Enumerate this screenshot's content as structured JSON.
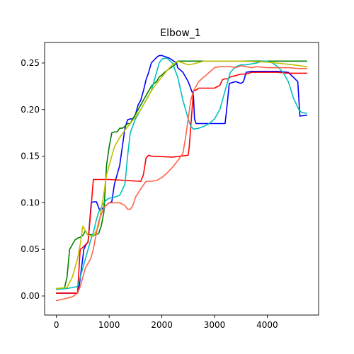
{
  "chart_data": {
    "type": "line",
    "title": "Elbow_1",
    "xlabel": "",
    "ylabel": "",
    "xlim": [
      -225,
      4975
    ],
    "ylim": [
      -0.0205,
      0.272
    ],
    "x_ticks": [
      0,
      1000,
      2000,
      3000,
      4000
    ],
    "x_tick_labels": [
      "0",
      "1000",
      "2000",
      "3000",
      "4000"
    ],
    "y_ticks": [
      0.0,
      0.05,
      0.1,
      0.15,
      0.2,
      0.25
    ],
    "y_tick_labels": [
      "0.00",
      "0.05",
      "0.10",
      "0.15",
      "0.20",
      "0.25"
    ],
    "grid": false,
    "legend": "none",
    "series": [
      {
        "color": "#0000ff",
        "x": [
          0,
          150,
          300,
          400,
          430,
          520,
          560,
          600,
          660,
          700,
          760,
          820,
          900,
          1000,
          1050,
          1100,
          1150,
          1200,
          1250,
          1300,
          1350,
          1400,
          1450,
          1500,
          1550,
          1600,
          1650,
          1700,
          1750,
          1800,
          1850,
          1900,
          1950,
          2000,
          2050,
          2100,
          2150,
          2200,
          2280,
          2300,
          2400,
          2500,
          2600,
          2620,
          2650,
          3000,
          3200,
          3230,
          3280,
          3400,
          3500,
          3550,
          3600,
          3700,
          4000,
          4200,
          4400,
          4580,
          4620,
          4750
        ],
        "y": [
          0.003,
          0.003,
          0.003,
          0.003,
          0.01,
          0.05,
          0.055,
          0.058,
          0.1,
          0.101,
          0.101,
          0.092,
          0.095,
          0.1,
          0.101,
          0.12,
          0.13,
          0.14,
          0.16,
          0.18,
          0.189,
          0.19,
          0.19,
          0.195,
          0.205,
          0.21,
          0.22,
          0.232,
          0.24,
          0.25,
          0.253,
          0.256,
          0.258,
          0.258,
          0.257,
          0.256,
          0.255,
          0.253,
          0.25,
          0.245,
          0.24,
          0.23,
          0.215,
          0.19,
          0.185,
          0.185,
          0.185,
          0.2,
          0.228,
          0.23,
          0.228,
          0.23,
          0.24,
          0.241,
          0.241,
          0.241,
          0.24,
          0.23,
          0.193,
          0.194
        ]
      },
      {
        "color": "#008000",
        "x": [
          0,
          150,
          200,
          250,
          300,
          350,
          400,
          450,
          500,
          550,
          600,
          650,
          700,
          750,
          800,
          850,
          900,
          950,
          1000,
          1050,
          1100,
          1150,
          1200,
          1250,
          1300,
          1350,
          1400,
          1450,
          1500,
          1550,
          1600,
          1650,
          1700,
          1750,
          1800,
          1850,
          1900,
          1950,
          2000,
          2050,
          2100,
          2150,
          2200,
          2250,
          2300,
          2500,
          3000,
          3500,
          4000,
          4500,
          4750
        ],
        "y": [
          0.008,
          0.008,
          0.02,
          0.05,
          0.055,
          0.06,
          0.062,
          0.063,
          0.065,
          0.07,
          0.065,
          0.066,
          0.065,
          0.066,
          0.067,
          0.075,
          0.09,
          0.14,
          0.16,
          0.175,
          0.176,
          0.176,
          0.18,
          0.18,
          0.182,
          0.185,
          0.185,
          0.19,
          0.195,
          0.2,
          0.205,
          0.21,
          0.215,
          0.22,
          0.225,
          0.228,
          0.23,
          0.235,
          0.237,
          0.24,
          0.242,
          0.244,
          0.246,
          0.248,
          0.252,
          0.252,
          0.252,
          0.252,
          0.252,
          0.252,
          0.252
        ]
      },
      {
        "color": "#ff0000",
        "x": [
          0,
          200,
          400,
          450,
          500,
          550,
          600,
          650,
          700,
          1000,
          1300,
          1600,
          1650,
          1700,
          1750,
          1800,
          2200,
          2500,
          2520,
          2560,
          2600,
          2650,
          2700,
          2800,
          3000,
          3100,
          3150,
          3200,
          3250,
          3300,
          3500,
          3600,
          3700,
          4000,
          4200,
          4400,
          4750
        ],
        "y": [
          0.003,
          0.003,
          0.003,
          0.05,
          0.052,
          0.055,
          0.058,
          0.09,
          0.125,
          0.125,
          0.124,
          0.123,
          0.13,
          0.148,
          0.151,
          0.15,
          0.149,
          0.151,
          0.16,
          0.19,
          0.22,
          0.221,
          0.223,
          0.223,
          0.223,
          0.226,
          0.232,
          0.233,
          0.233,
          0.235,
          0.238,
          0.238,
          0.24,
          0.24,
          0.24,
          0.239,
          0.239
        ]
      },
      {
        "color": "#00bfbf",
        "x": [
          0,
          200,
          400,
          500,
          550,
          600,
          650,
          700,
          750,
          800,
          850,
          900,
          950,
          1000,
          1100,
          1200,
          1300,
          1350,
          1400,
          1500,
          1600,
          1700,
          1800,
          1850,
          1900,
          1950,
          2000,
          2050,
          2100,
          2200,
          2300,
          2400,
          2500,
          2550,
          2600,
          2700,
          2800,
          2900,
          3000,
          3050,
          3100,
          3200,
          3300,
          3400,
          3500,
          3600,
          3700,
          3800,
          3900,
          4000,
          4100,
          4200,
          4300,
          4400,
          4500,
          4600,
          4650,
          4750
        ],
        "y": [
          0.007,
          0.008,
          0.01,
          0.03,
          0.04,
          0.05,
          0.06,
          0.068,
          0.08,
          0.09,
          0.095,
          0.1,
          0.103,
          0.105,
          0.106,
          0.108,
          0.12,
          0.15,
          0.175,
          0.19,
          0.2,
          0.21,
          0.22,
          0.23,
          0.24,
          0.25,
          0.254,
          0.255,
          0.255,
          0.25,
          0.235,
          0.21,
          0.19,
          0.182,
          0.179,
          0.18,
          0.182,
          0.185,
          0.19,
          0.195,
          0.2,
          0.22,
          0.24,
          0.246,
          0.248,
          0.248,
          0.249,
          0.25,
          0.252,
          0.252,
          0.25,
          0.246,
          0.24,
          0.23,
          0.212,
          0.2,
          0.197,
          0.196
        ]
      },
      {
        "color": "#bfbf00",
        "x": [
          0,
          200,
          300,
          400,
          450,
          500,
          550,
          600,
          700,
          800,
          900,
          950,
          1000,
          1050,
          1100,
          1200,
          1300,
          1400,
          1500,
          1600,
          1700,
          1800,
          1900,
          2000,
          2100,
          2200,
          2300,
          2400,
          2500,
          2600,
          2800,
          3000,
          3500,
          4000,
          4500,
          4750
        ],
        "y": [
          0.008,
          0.009,
          0.02,
          0.04,
          0.055,
          0.075,
          0.07,
          0.065,
          0.064,
          0.075,
          0.11,
          0.13,
          0.14,
          0.15,
          0.16,
          0.17,
          0.178,
          0.185,
          0.192,
          0.2,
          0.21,
          0.22,
          0.228,
          0.235,
          0.242,
          0.248,
          0.252,
          0.25,
          0.248,
          0.249,
          0.252,
          0.252,
          0.252,
          0.251,
          0.248,
          0.246
        ]
      },
      {
        "color": "#ff6347",
        "x": [
          0,
          150,
          300,
          400,
          450,
          500,
          550,
          600,
          650,
          700,
          750,
          800,
          900,
          1000,
          1100,
          1200,
          1300,
          1350,
          1400,
          1450,
          1500,
          1600,
          1700,
          1800,
          1900,
          2000,
          2100,
          2200,
          2300,
          2400,
          2450,
          2500,
          2550,
          2600,
          2700,
          2800,
          2900,
          3000,
          3100,
          3200,
          3300,
          3400,
          3500,
          3600,
          3700,
          3800,
          4000,
          4200,
          4400,
          4600,
          4750
        ],
        "y": [
          -0.005,
          -0.003,
          -0.001,
          0.003,
          0.01,
          0.02,
          0.03,
          0.035,
          0.04,
          0.05,
          0.065,
          0.08,
          0.095,
          0.1,
          0.1,
          0.1,
          0.097,
          0.093,
          0.093,
          0.097,
          0.106,
          0.115,
          0.123,
          0.123,
          0.124,
          0.127,
          0.132,
          0.138,
          0.145,
          0.153,
          0.17,
          0.19,
          0.21,
          0.22,
          0.23,
          0.235,
          0.24,
          0.245,
          0.246,
          0.246,
          0.246,
          0.245,
          0.247,
          0.246,
          0.245,
          0.246,
          0.245,
          0.245,
          0.245,
          0.244,
          0.244
        ]
      }
    ]
  }
}
